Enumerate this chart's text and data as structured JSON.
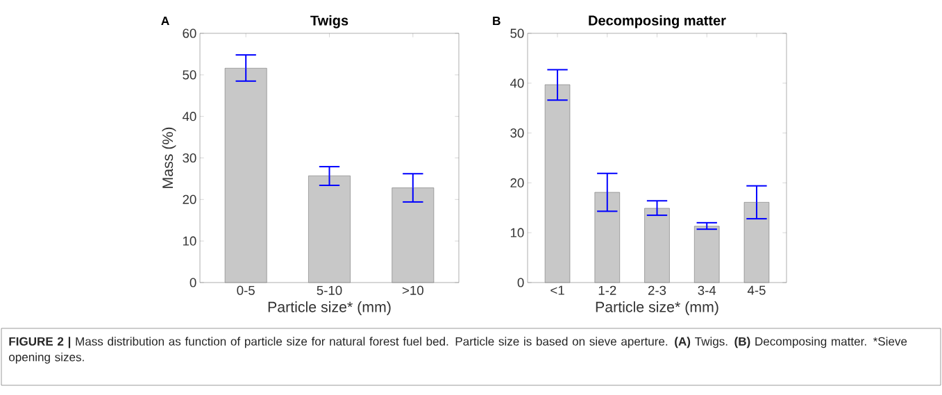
{
  "chart_data": [
    {
      "type": "bar",
      "title": "Twigs",
      "xlabel": "Particle size* (mm)",
      "ylabel": "Mass (%)",
      "categories": [
        "0-5",
        "5-10",
        ">10"
      ],
      "values": [
        51.6,
        25.7,
        22.8
      ],
      "errors": [
        [
          48.5,
          54.8
        ],
        [
          23.4,
          27.9
        ],
        [
          19.4,
          26.2
        ]
      ],
      "color": "#c8c8c8",
      "ylim": [
        0,
        60
      ],
      "yticks": [
        0,
        10,
        20,
        30,
        40,
        50,
        60
      ],
      "annotations": [
        "A",
        "**FIGURE 2 |** Mass distribution as function of particle size for natural forest fuel bed. Particle size is based on sieve aperture. **(A)** Twigs. **(B)** Decomposing matter. *Sieve opening sizes."
      ]
    },
    {
      "type": "bar",
      "title": "Decomposing matter",
      "xlabel": "Particle size* (mm)",
      "categories": [
        "<1",
        "1-2",
        "2-3",
        "3-4",
        "4-5"
      ],
      "values": [
        39.7,
        18.1,
        14.9,
        11.3,
        16.1
      ],
      "errors": [
        [
          36.6,
          42.7
        ],
        [
          14.3,
          21.9
        ],
        [
          13.5,
          16.4
        ],
        [
          10.7,
          12.0
        ],
        [
          12.8,
          19.4
        ]
      ],
      "color": "#c8c8c8",
      "ylim": [
        0,
        50
      ],
      "yticks": [
        0,
        10,
        20,
        30,
        40,
        50
      ],
      "annotations": [
        "B"
      ]
    }
  ]
}
